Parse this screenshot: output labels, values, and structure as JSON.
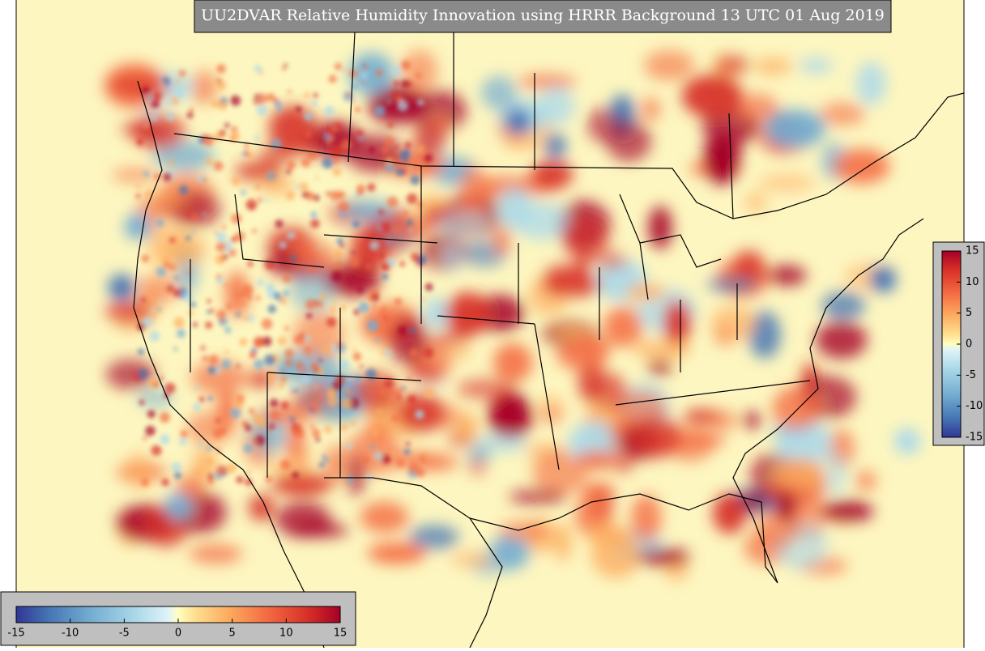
{
  "title": "UU2DVAR Relative Humidity Innovation using HRRR Background 13 UTC 01 Aug 2019",
  "colorbars": [
    {
      "orientation": "vertical",
      "range": [
        -15,
        15
      ],
      "ticks": [
        -15,
        -10,
        -5,
        0,
        5,
        10,
        15
      ]
    },
    {
      "orientation": "horizontal",
      "range": [
        -15,
        15
      ],
      "ticks": [
        -15,
        -10,
        -5,
        0,
        5,
        10,
        15
      ]
    }
  ]
}
